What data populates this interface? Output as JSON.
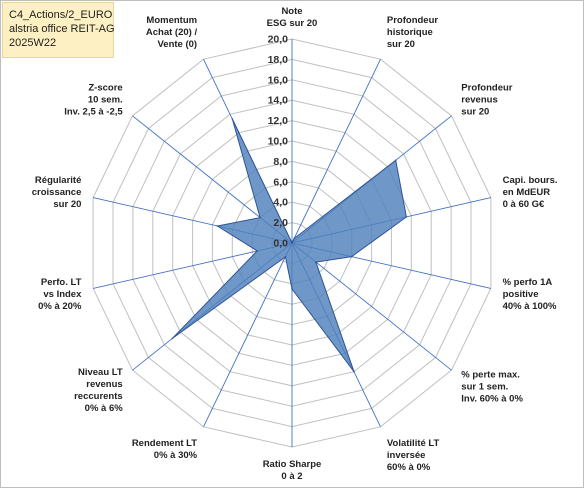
{
  "header": {
    "line1": "C4_Actions/2_EURO",
    "line2": "alstria office REIT-AG",
    "line3": "2025W22"
  },
  "chart_data": {
    "type": "radar",
    "title": "",
    "rmax": 20,
    "ticks": [
      "0,0",
      "2,0",
      "4,0",
      "6,0",
      "8,0",
      "10,0",
      "12,0",
      "14,0",
      "16,0",
      "18,0",
      "20,0"
    ],
    "axes": [
      {
        "label": [
          "Note",
          "ESG sur 20"
        ]
      },
      {
        "label": [
          "Profondeur",
          "historique",
          "sur 20"
        ]
      },
      {
        "label": [
          "Profondeur",
          "revenus",
          "sur 20"
        ]
      },
      {
        "label": [
          "Capi. bours.",
          "en MdEUR",
          "0 à 60 G€"
        ]
      },
      {
        "label": [
          "% perfo 1A",
          "positive",
          "40% à 100%"
        ]
      },
      {
        "label": [
          "% perte max.",
          "sur 1 sem.",
          "Inv. 60% à 0%"
        ]
      },
      {
        "label": [
          "Volatilité LT",
          "inversée",
          "60% à 0%"
        ]
      },
      {
        "label": [
          "Ratio Sharpe",
          "0 à 2"
        ]
      },
      {
        "label": [
          "Rendement LT",
          "0% à 30%"
        ]
      },
      {
        "label": [
          "Niveau LT",
          "revenus",
          "reccurents",
          "0% à 6%"
        ]
      },
      {
        "label": [
          "Perfo. LT",
          "vs Index",
          "0% à 20%"
        ]
      },
      {
        "label": [
          "Régularité",
          "croissance",
          "sur 20"
        ]
      },
      {
        "label": [
          "Z-score",
          "10 sem.",
          "Inv. 2,5 à -2,5"
        ]
      },
      {
        "label": [
          "Momentum",
          "Achat (20) /",
          "Vente (0)"
        ]
      }
    ],
    "series": [
      {
        "values": [
          0.0,
          0.5,
          13.0,
          11.5,
          6.0,
          3.0,
          14.0,
          4.5,
          1.5,
          15.0,
          3.5,
          7.5,
          4.0,
          13.5
        ]
      }
    ],
    "colors": {
      "fill": "#4f81bd",
      "stroke": "#2f5597",
      "axis": "#4472c4",
      "grid": "#c0c0c0"
    }
  }
}
